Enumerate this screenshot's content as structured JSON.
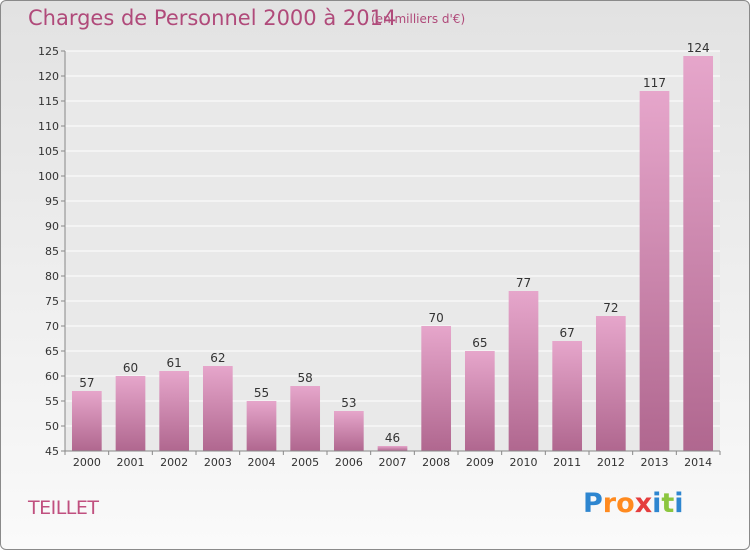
{
  "header": {
    "title": "Charges de Personnel 2000 à 2014",
    "subtitle": "(en milliers d'€)"
  },
  "footer": {
    "commune": "TEILLET",
    "logo_letters": [
      "P",
      "r",
      "o",
      "x",
      "i",
      "t",
      "i"
    ],
    "logo_colors": [
      "#2e86d0",
      "#ff8a1f",
      "#ff8a1f",
      "#e53d3d",
      "#2e86d0",
      "#8cc63f",
      "#2e86d0"
    ]
  },
  "chart_data": {
    "type": "bar",
    "title": "Charges de Personnel 2000 à 2014",
    "subtitle": "(en milliers d'€)",
    "categories": [
      "2000",
      "2001",
      "2002",
      "2003",
      "2004",
      "2005",
      "2006",
      "2007",
      "2008",
      "2009",
      "2010",
      "2011",
      "2012",
      "2013",
      "2014"
    ],
    "values": [
      57,
      60,
      61,
      62,
      55,
      58,
      53,
      46,
      70,
      65,
      77,
      67,
      72,
      117,
      124
    ],
    "ylim": [
      45,
      125
    ],
    "yticks": [
      45,
      50,
      55,
      60,
      65,
      70,
      75,
      80,
      85,
      90,
      95,
      100,
      105,
      110,
      115,
      120,
      125
    ],
    "grid": true,
    "xlabel": "",
    "ylabel": "",
    "colors": {
      "bar_top": "#e6a6cb",
      "bar_bottom": "#b0678f",
      "text": "#b04a7a",
      "plot_bg": "#e9e9e9"
    }
  }
}
